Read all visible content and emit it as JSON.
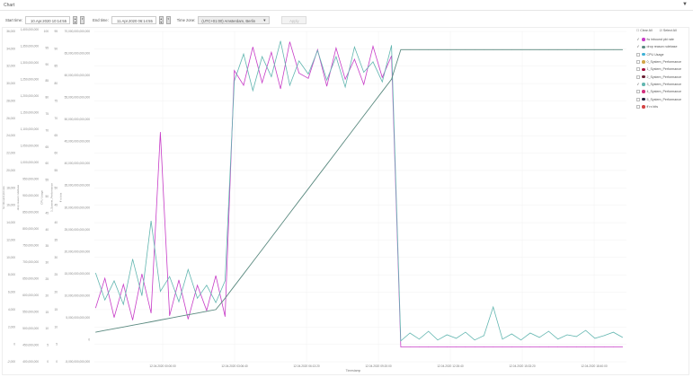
{
  "window": {
    "title": "Chart",
    "collapse_icon": "chevron-down-icon"
  },
  "controls": {
    "start_label": "Start time:",
    "start_value": "10.Apr.2020 10:14:55",
    "end_label": "End time:",
    "end_value": "11.Apr.2020 06:14:55",
    "tz_label": "Time zone:",
    "tz_value": "(UTC+01:00) Amsterdam, Berlin",
    "apply": "Apply"
  },
  "legend": {
    "clear_all": "Clear All",
    "select_all": "Select All",
    "items": [
      {
        "label": "fw inbound pkt rate",
        "checked": true,
        "color": "#c73cc7"
      },
      {
        "label": "drop reason rulebase",
        "checked": true,
        "color": "#5b8a80"
      },
      {
        "label": "CPU Usage",
        "checked": false,
        "color": "#3fb1d6"
      },
      {
        "label": "0_System_Performance",
        "checked": false,
        "color": "#d3a548"
      },
      {
        "label": "1_System_Performance",
        "checked": false,
        "color": "#a3123f"
      },
      {
        "label": "2_System_Performance",
        "checked": false,
        "color": "#6a2134"
      },
      {
        "label": "3_System_Performance",
        "checked": true,
        "color": "#62b6b0"
      },
      {
        "label": "4_System_Performance",
        "checked": false,
        "color": "#d2307f"
      },
      {
        "label": "5_System_Performance",
        "checked": false,
        "color": "#22223f"
      },
      {
        "label": "ff rx bits",
        "checked": false,
        "color": "#d44444"
      }
    ]
  },
  "chart_data": {
    "type": "line",
    "xlabel": "Timestamp",
    "x_ticks": [
      "12.04.2020 00:00:00",
      "12.04.2020 03:06:40",
      "12.04.2020 06:13:20",
      "12.04.2020 09:20:00",
      "12.04.2020 12:26:40",
      "12.04.2020 15:33:20",
      "12.04.2020 18:40:00"
    ],
    "y_axes": [
      {
        "label": "fw inbound pkt rate",
        "ticks": [
          "36,000",
          "34,000",
          "32,000",
          "30,000",
          "28,000",
          "26,000",
          "24,000",
          "22,000",
          "20,000",
          "18,000",
          "16,000",
          "14,000",
          "12,000",
          "10,000",
          "8,000",
          "6,000",
          "4,000",
          "2,000",
          "0",
          "-2,000"
        ]
      },
      {
        "label": "drop reason rulebase",
        "ticks": [
          "1,400,000,000",
          "1,350,000,000",
          "1,300,000,000",
          "1,250,000,000",
          "1,200,000,000",
          "1,150,000,000",
          "1,100,000,000",
          "1,050,000,000",
          "1,000,000,000",
          "950,000,000",
          "900,000,000",
          "850,000,000",
          "800,000,000",
          "750,000,000",
          "700,000,000",
          "650,000,000",
          "600,000,000",
          "550,000,000",
          "500,000,000",
          "450,000,000",
          "400,000,000"
        ]
      },
      {
        "label": "CPU Usage",
        "ticks": [
          "100",
          "95",
          "90",
          "85",
          "80",
          "75",
          "70",
          "65",
          "60",
          "55",
          "50",
          "45",
          "40",
          "35",
          "30",
          "25",
          "20",
          "15",
          "10",
          "5",
          "0"
        ]
      },
      {
        "label": "3_System_Performance",
        "ticks": [
          "95",
          "90",
          "85",
          "80",
          "75",
          "70",
          "65",
          "60",
          "55",
          "50",
          "45",
          "40",
          "35",
          "30",
          "25",
          "20",
          "15",
          "10",
          "5",
          "0"
        ]
      },
      {
        "label": "ff rx bits",
        "ticks": [
          "70,000,000,000,000",
          "65,000,000,000,000",
          "60,000,000,000,000",
          "55,000,000,000,000",
          "50,000,000,000,000",
          "45,000,000,000,000",
          "40,000,000,000,000",
          "35,000,000,000,000",
          "30,000,000,000,000",
          "25,000,000,000,000",
          "20,000,000,000,000",
          "15,000,000,000,000",
          "10,000,000,000,000",
          "5,000,000,000,000",
          "0",
          "-5,000,000,000,000"
        ]
      }
    ],
    "ylim": [
      -2000,
      36000
    ],
    "x_hours_from_first_tick": [
      -2.9,
      19.9
    ],
    "series": [
      {
        "name": "fw inbound pkt rate",
        "color": "#c73cc7",
        "values": [
          4200,
          7600,
          3100,
          6900,
          2800,
          8100,
          3600,
          24400,
          3300,
          7400,
          2900,
          6800,
          3900,
          7900,
          3200,
          31500,
          29800,
          34200,
          30100,
          33600,
          29400,
          34800,
          31200,
          30600,
          33900,
          29700,
          34100,
          30500,
          32800,
          29900,
          34300,
          30700,
          33200,
          -300,
          -300,
          -300,
          -300,
          -300,
          -300,
          -300,
          -300,
          -300,
          -300,
          -300,
          -300,
          -300,
          -300,
          -300,
          -300,
          -300,
          -300,
          -300,
          -300,
          -300,
          -300,
          -300,
          -300,
          -300
        ]
      },
      {
        "name": "3_System_Performance",
        "color": "#62b6b0",
        "values": [
          8200,
          5100,
          7300,
          4600,
          9800,
          5600,
          14200,
          6100,
          7800,
          4900,
          8600,
          5300,
          6800,
          4800,
          7300,
          30300,
          33400,
          29200,
          33100,
          30800,
          34900,
          29800,
          32600,
          31100,
          33800,
          30400,
          33100,
          29600,
          34200,
          31300,
          32500,
          30200,
          34400,
          400,
          1300,
          600,
          1500,
          500,
          1100,
          700,
          1400,
          500,
          1000,
          4300,
          600,
          1200,
          500,
          1300,
          800,
          1500,
          600,
          1100,
          900,
          1600,
          700,
          1000,
          1400,
          800
        ]
      },
      {
        "name": "drop reason rulebase",
        "color": "#5b8a80",
        "values": [
          1400,
          1600,
          1800,
          2000,
          2200,
          2400,
          2600,
          2800,
          3000,
          3200,
          3400,
          3600,
          3800,
          4000,
          5300,
          6700,
          8100,
          9500,
          10900,
          12300,
          13700,
          15100,
          16500,
          17900,
          19300,
          20700,
          22100,
          23500,
          24900,
          26300,
          27700,
          29100,
          30500,
          33900,
          33900,
          33900,
          33900,
          33900,
          33900,
          33900,
          33900,
          33900,
          33900,
          33900,
          33900,
          33900,
          33900,
          33900,
          33900,
          33900,
          33900,
          33900,
          33900,
          33900,
          33900,
          33900,
          33900,
          33900
        ]
      }
    ]
  }
}
